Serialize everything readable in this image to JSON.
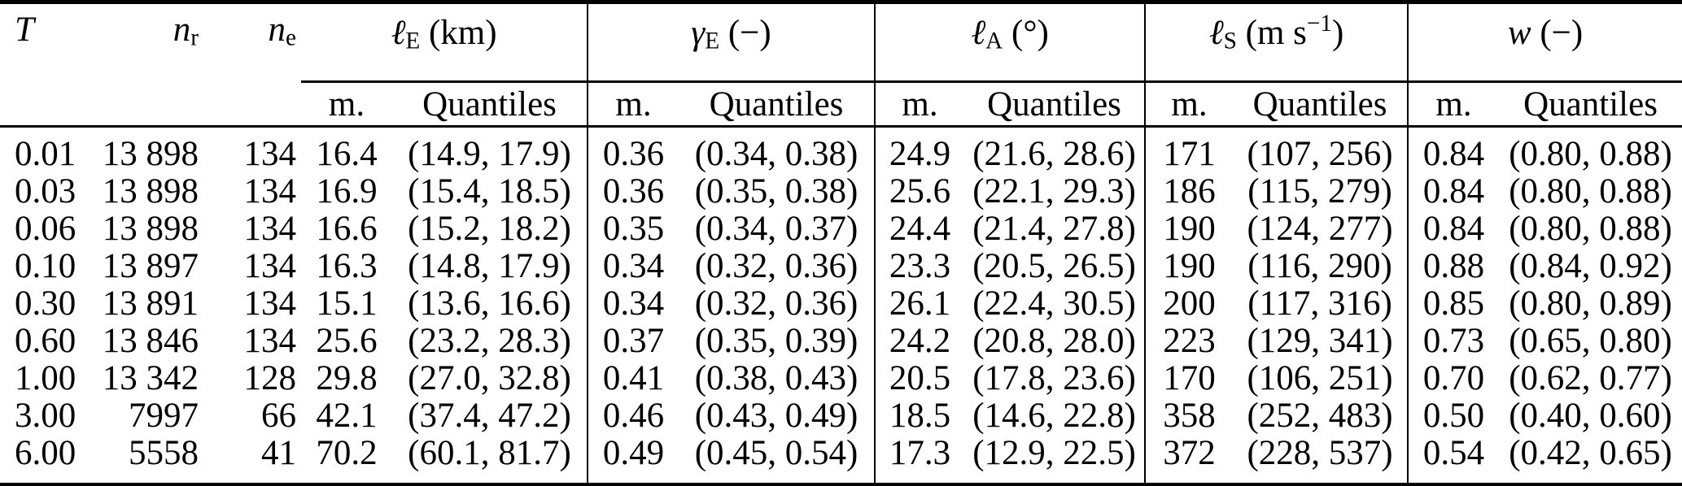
{
  "colors": {
    "background": "#ffffff",
    "text": "#000000",
    "rule": "#000000"
  },
  "table": {
    "col_headers": {
      "t": "T",
      "n_r": {
        "base": "n",
        "sub": "r"
      },
      "n_e": {
        "base": "n",
        "sub": "e"
      }
    },
    "groups": [
      {
        "symbol": "ℓ",
        "sub": "E",
        "unit": " (km)",
        "unit_sup": "",
        "unit_post": ""
      },
      {
        "symbol": "γ",
        "sub": "E",
        "unit": " (−)",
        "unit_sup": "",
        "unit_post": ""
      },
      {
        "symbol": "ℓ",
        "sub": "A",
        "unit": " (°)",
        "unit_sup": "",
        "unit_post": ""
      },
      {
        "symbol": "ℓ",
        "sub": "S",
        "unit": " (m s",
        "unit_sup": "−1",
        "unit_post": ")"
      },
      {
        "symbol": "w",
        "sub": "",
        "unit": " (−)",
        "unit_sup": "",
        "unit_post": ""
      }
    ],
    "subheaders": {
      "median": "m.",
      "quantiles": "Quantiles"
    },
    "rows": [
      [
        "0.01",
        "13 898",
        "134",
        "16.4",
        "(14.9, 17.9)",
        "0.36",
        "(0.34, 0.38)",
        "24.9",
        "(21.6, 28.6)",
        "171",
        "(107, 256)",
        "0.84",
        "(0.80, 0.88)"
      ],
      [
        "0.03",
        "13 898",
        "134",
        "16.9",
        "(15.4, 18.5)",
        "0.36",
        "(0.35, 0.38)",
        "25.6",
        "(22.1, 29.3)",
        "186",
        "(115, 279)",
        "0.84",
        "(0.80, 0.88)"
      ],
      [
        "0.06",
        "13 898",
        "134",
        "16.6",
        "(15.2, 18.2)",
        "0.35",
        "(0.34, 0.37)",
        "24.4",
        "(21.4, 27.8)",
        "190",
        "(124, 277)",
        "0.84",
        "(0.80, 0.88)"
      ],
      [
        "0.10",
        "13 897",
        "134",
        "16.3",
        "(14.8, 17.9)",
        "0.34",
        "(0.32, 0.36)",
        "23.3",
        "(20.5, 26.5)",
        "190",
        "(116, 290)",
        "0.88",
        "(0.84, 0.92)"
      ],
      [
        "0.30",
        "13 891",
        "134",
        "15.1",
        "(13.6, 16.6)",
        "0.34",
        "(0.32, 0.36)",
        "26.1",
        "(22.4, 30.5)",
        "200",
        "(117, 316)",
        "0.85",
        "(0.80, 0.89)"
      ],
      [
        "0.60",
        "13 846",
        "134",
        "25.6",
        "(23.2, 28.3)",
        "0.37",
        "(0.35, 0.39)",
        "24.2",
        "(20.8, 28.0)",
        "223",
        "(129, 341)",
        "0.73",
        "(0.65, 0.80)"
      ],
      [
        "1.00",
        "13 342",
        "128",
        "29.8",
        "(27.0, 32.8)",
        "0.41",
        "(0.38, 0.43)",
        "20.5",
        "(17.8, 23.6)",
        "170",
        "(106, 251)",
        "0.70",
        "(0.62, 0.77)"
      ],
      [
        "3.00",
        "7997",
        "66",
        "42.1",
        "(37.4, 47.2)",
        "0.46",
        "(0.43, 0.49)",
        "18.5",
        "(14.6, 22.8)",
        "358",
        "(252, 483)",
        "0.50",
        "(0.40, 0.60)"
      ],
      [
        "6.00",
        "5558",
        "41",
        "70.2",
        "(60.1, 81.7)",
        "0.49",
        "(0.45, 0.54)",
        "17.3",
        "(12.9, 22.5)",
        "372",
        "(228, 537)",
        "0.54",
        "(0.42, 0.65)"
      ]
    ]
  }
}
